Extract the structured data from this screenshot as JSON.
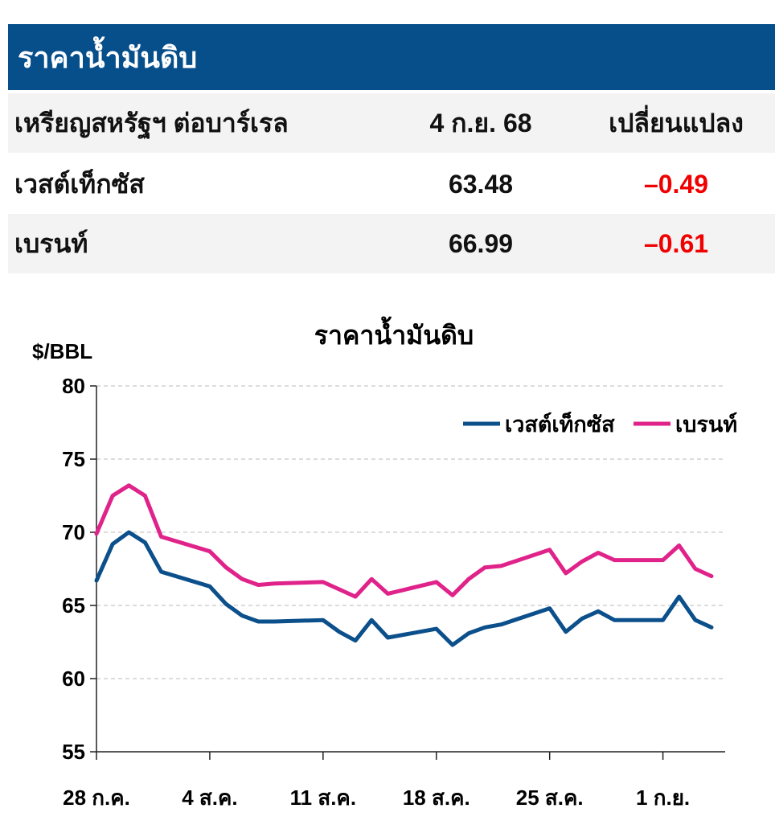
{
  "table": {
    "title": "ราคาน้ำมันดิบ",
    "header": {
      "label": "เหรียญสหรัฐฯ ต่อบาร์เรล",
      "date": "4 ก.ย. 68",
      "change": "เปลี่ยนแปลง"
    },
    "rows": [
      {
        "name": "เวสต์เท็กซัส",
        "price": "63.48",
        "change": "–0.49"
      },
      {
        "name": "เบรนท์",
        "price": "66.99",
        "change": "–0.61"
      }
    ]
  },
  "colors": {
    "banner": "#074f8b",
    "wti": "#0b4f8b",
    "brent": "#e0238a",
    "negative": "#f00000"
  },
  "chart_data": {
    "type": "line",
    "title": "ราคาน้ำมันดิบ",
    "ylabel": "$/BBL",
    "ylim": [
      55,
      80
    ],
    "yticks": [
      55,
      60,
      65,
      70,
      75,
      80
    ],
    "xlim": [
      0,
      38
    ],
    "xticks": [
      {
        "x": 0,
        "label": "28 ก.ค."
      },
      {
        "x": 7,
        "label": "4 ส.ค."
      },
      {
        "x": 14,
        "label": "11 ส.ค."
      },
      {
        "x": 21,
        "label": "18 ส.ค."
      },
      {
        "x": 28,
        "label": "25 ส.ค."
      },
      {
        "x": 35,
        "label": "1 ก.ย."
      }
    ],
    "grid": true,
    "legend": "top-right",
    "x": [
      0,
      1,
      2,
      3,
      4,
      7,
      8,
      9,
      10,
      11,
      14,
      15,
      16,
      17,
      18,
      21,
      22,
      23,
      24,
      25,
      28,
      29,
      30,
      31,
      32,
      35,
      36,
      37,
      38
    ],
    "series": [
      {
        "name": "เวสต์เท็กซัส",
        "color": "#0b4f8b",
        "values": [
          66.7,
          69.2,
          70.0,
          69.3,
          67.3,
          66.3,
          65.1,
          64.3,
          63.9,
          63.9,
          64.0,
          63.2,
          62.6,
          64.0,
          62.8,
          63.4,
          62.3,
          63.1,
          63.5,
          63.7,
          64.8,
          63.2,
          64.1,
          64.6,
          64.0,
          64.0,
          65.6,
          64.0,
          63.5
        ]
      },
      {
        "name": "เบรนท์",
        "color": "#e0238a",
        "values": [
          69.9,
          72.5,
          73.2,
          72.5,
          69.7,
          68.7,
          67.6,
          66.8,
          66.4,
          66.5,
          66.6,
          66.1,
          65.6,
          66.8,
          65.8,
          66.6,
          65.7,
          66.8,
          67.6,
          67.7,
          68.8,
          67.2,
          68.0,
          68.6,
          68.1,
          68.1,
          69.1,
          67.5,
          67.0
        ]
      }
    ]
  }
}
